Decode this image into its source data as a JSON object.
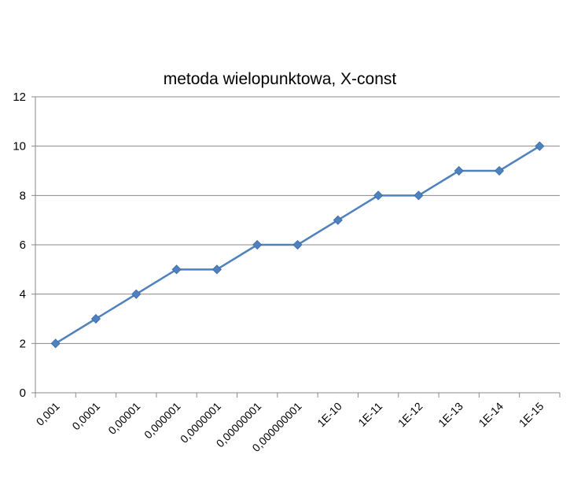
{
  "chart_data": {
    "type": "line",
    "title": "metoda wielopunktowa, X-const",
    "categories": [
      "0,001",
      "0,0001",
      "0,00001",
      "0,000001",
      "0,0000001",
      "0,00000001",
      "0,000000001",
      "1E-10",
      "1E-11",
      "1E-12",
      "1E-13",
      "1E-14",
      "1E-15"
    ],
    "series": [
      {
        "values": [
          2,
          3,
          4,
          5,
          5,
          6,
          6,
          7,
          8,
          8,
          9,
          9,
          10
        ]
      }
    ],
    "ylim": [
      0,
      12
    ],
    "yticks": [
      0,
      2,
      4,
      6,
      8,
      10,
      12
    ],
    "grid": true,
    "legend": "none",
    "colors": {
      "series": "#4F81BD",
      "marker": "#4F81BD",
      "grid": "#888888",
      "axis": "#888888"
    }
  }
}
